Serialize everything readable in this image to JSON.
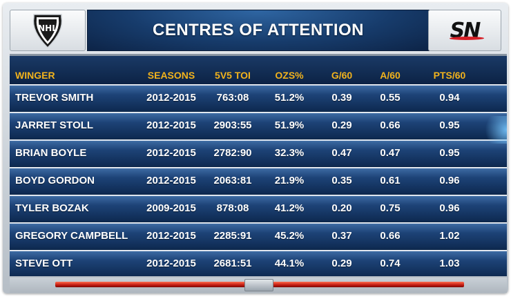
{
  "header": {
    "title": "CENTRES OF ATTENTION",
    "left_logo": {
      "icon": "nhl-shield-icon",
      "text": "NHL"
    },
    "right_logo": {
      "icon": "sn-logo-icon",
      "text": "SN"
    }
  },
  "table": {
    "columns": [
      "WINGER",
      "SEASONS",
      "5V5 TOI",
      "OZS%",
      "G/60",
      "A/60",
      "PTS/60"
    ],
    "rows": [
      [
        "TREVOR SMITH",
        "2012-2015",
        "763:08",
        "51.2%",
        "0.39",
        "0.55",
        "0.94"
      ],
      [
        "JARRET STOLL",
        "2012-2015",
        "2903:55",
        "51.9%",
        "0.29",
        "0.66",
        "0.95"
      ],
      [
        "BRIAN BOYLE",
        "2012-2015",
        "2782:90",
        "32.3%",
        "0.47",
        "0.47",
        "0.95"
      ],
      [
        "BOYD GORDON",
        "2012-2015",
        "2063:81",
        "21.9%",
        "0.35",
        "0.61",
        "0.96"
      ],
      [
        "TYLER BOZAK",
        "2009-2015",
        "878:08",
        "41.2%",
        "0.20",
        "0.75",
        "0.96"
      ],
      [
        "GREGORY CAMPBELL",
        "2012-2015",
        "2285:91",
        "45.2%",
        "0.37",
        "0.66",
        "1.02"
      ],
      [
        "STEVE OTT",
        "2012-2015",
        "2681:51",
        "44.1%",
        "0.29",
        "0.74",
        "1.03"
      ]
    ]
  },
  "colors": {
    "header_text": "#f2b31c",
    "row_text": "#ffffff",
    "row_bg": "#1d4377",
    "accent_red": "#c01a10"
  }
}
